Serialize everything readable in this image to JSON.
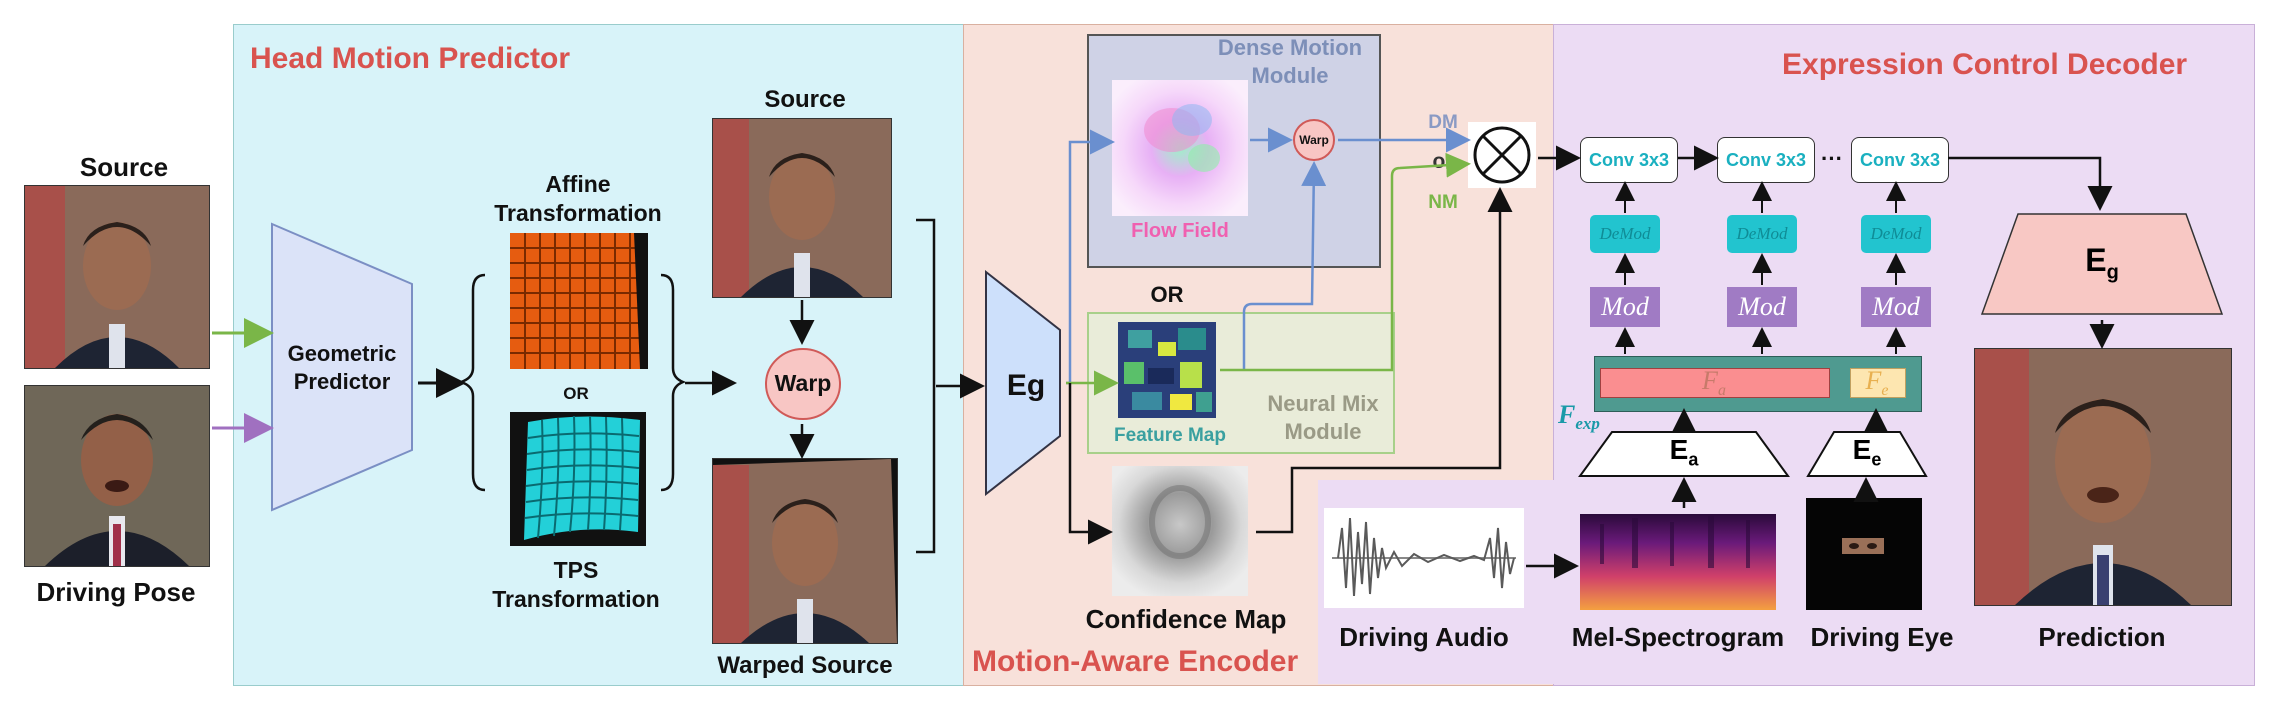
{
  "panels": {
    "head_motion_predictor": "Head Motion Predictor",
    "motion_aware_encoder": "Motion-Aware Encoder",
    "expression_control_decoder": "Expression Control Decoder"
  },
  "left": {
    "source_label": "Source",
    "driving_pose_label": "Driving Pose"
  },
  "geometric_predictor": "Geometric Predictor",
  "affine_label": "Affine Transformation",
  "or_small": "OR",
  "tps_label": "TPS Transformation",
  "source2_label": "Source",
  "warp_label": "Warp",
  "warped_source_label": "Warped Source",
  "eg_label": "Eg",
  "dense_motion": {
    "title": "Dense Motion Module",
    "flow_field": "Flow Field",
    "warp_small": "Warp"
  },
  "or_mid": "OR",
  "neural_mix": {
    "title": "Neural Mix Module",
    "feature_map": "Feature Map"
  },
  "dm": "DM",
  "or_lower": "or",
  "nm": "NM",
  "confidence_map": "Confidence Map",
  "conv_labels": [
    "Conv 3x3",
    "Conv 3x3",
    "Conv 3x3"
  ],
  "ellipsis": "···",
  "demod": "DeMod",
  "mod": "Mod",
  "fexp": {
    "base": "F",
    "sub": "exp"
  },
  "fa": {
    "base": "F",
    "sub": "a"
  },
  "fe": {
    "base": "F",
    "sub": "e"
  },
  "ea": {
    "base": "E",
    "sub": "a"
  },
  "ee": {
    "base": "E",
    "sub": "e"
  },
  "eg_out": {
    "base": "E",
    "sub": "g"
  },
  "driving_audio": "Driving Audio",
  "mel_spectrogram": "Mel-Spectrogram",
  "driving_eye": "Driving Eye",
  "prediction": "Prediction",
  "colors": {
    "panel1_bg": "#d8f3f9",
    "panel2_bg": "#f8e1da",
    "panel3_bg": "#ecdcf4",
    "title_red": "#d9534f",
    "teal": "#22c4cf",
    "purple": "#a07bc4",
    "green_arrow": "#7ab648",
    "purple_arrow": "#a070c0",
    "blue_arrow": "#6a8fcf"
  }
}
